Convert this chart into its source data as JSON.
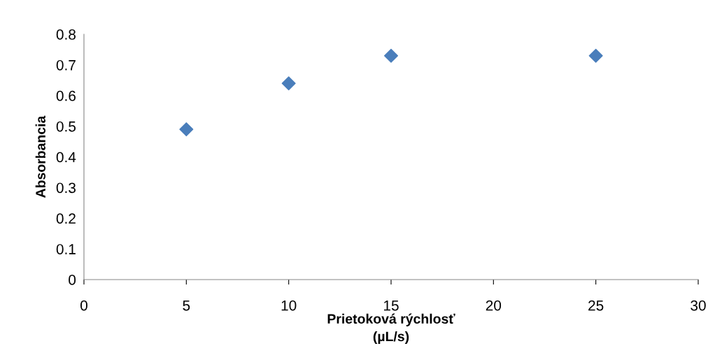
{
  "chart_data": {
    "type": "scatter",
    "xlabel": "Prietoková rýchlosť\n(µL/s)",
    "ylabel": "Absorbancia",
    "x": [
      5,
      10,
      15,
      25
    ],
    "series": [
      {
        "color": "#4a7ebb",
        "values": [
          0.49,
          0.64,
          0.73,
          0.73
        ]
      }
    ],
    "xlim": [
      0,
      30
    ],
    "xticks": [
      0,
      5,
      10,
      15,
      20,
      25,
      30
    ],
    "ylim": [
      0,
      0.8
    ],
    "yticks": [
      0,
      0.1,
      0.2,
      0.3,
      0.4,
      0.5,
      0.6,
      0.7,
      0.8
    ],
    "marker": "diamond",
    "grid": false,
    "legend": false
  }
}
